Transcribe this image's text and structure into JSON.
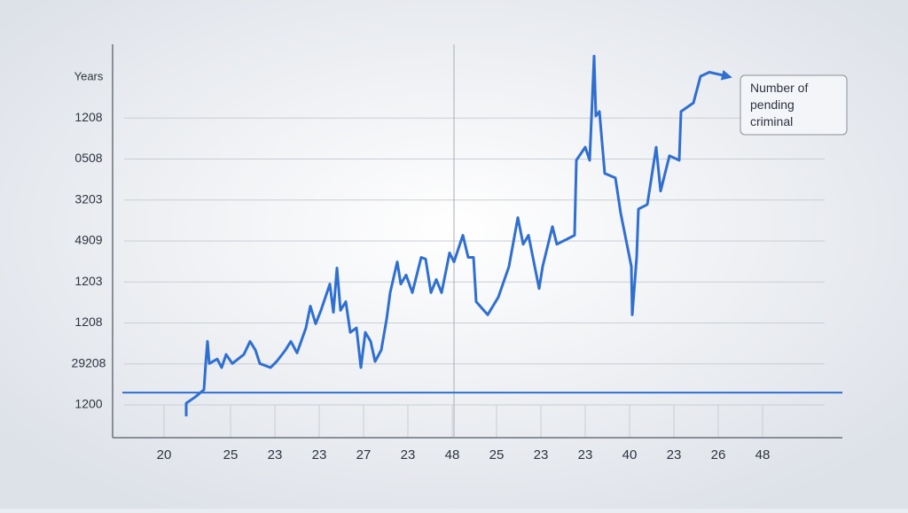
{
  "chart_data": {
    "type": "line",
    "y_label": "Years",
    "series": [
      {
        "name": "Number of pending criminal Charges",
        "color": "#2f6fd0",
        "x": [
          0.5,
          0.5,
          0.7,
          0.9,
          0.94,
          0.98,
          1.02,
          1.2,
          1.3,
          1.4,
          1.54,
          1.8,
          1.94,
          2.06,
          2.16,
          2.4,
          2.54,
          2.74,
          2.86,
          3.0,
          3.2,
          3.3,
          3.42,
          3.54,
          3.74,
          3.82,
          3.9,
          3.98,
          4.1,
          4.2,
          4.34,
          4.44,
          4.54,
          4.66,
          4.76,
          4.9,
          5.02,
          5.1,
          5.26,
          5.34,
          5.46,
          5.6,
          5.8,
          5.9,
          6.02,
          6.14,
          6.26,
          6.44,
          6.54,
          6.74,
          6.86,
          6.98,
          7.04,
          7.3,
          7.54,
          7.78,
          7.98,
          8.1,
          8.22,
          8.46,
          8.54,
          8.76,
          8.86,
          9.26,
          9.3,
          9.5,
          9.6,
          9.66,
          9.7,
          9.74,
          9.82,
          9.94,
          10.18,
          10.3,
          10.54,
          10.56,
          10.66,
          10.7,
          10.9,
          11.1,
          11.2,
          11.4,
          11.62,
          11.66,
          11.94,
          12.1,
          12.3,
          12.7
        ],
        "values": [
          -0.28,
          0.04,
          0.19,
          0.37,
          1.01,
          1.55,
          1.01,
          1.12,
          0.91,
          1.23,
          1.01,
          1.23,
          1.55,
          1.34,
          1.01,
          0.91,
          1.06,
          1.34,
          1.55,
          1.27,
          1.88,
          2.41,
          1.98,
          2.31,
          2.95,
          2.26,
          3.34,
          2.31,
          2.52,
          1.77,
          1.88,
          0.91,
          1.77,
          1.55,
          1.06,
          1.34,
          2.09,
          2.74,
          3.49,
          2.95,
          3.17,
          2.74,
          3.6,
          3.56,
          2.74,
          3.06,
          2.74,
          3.71,
          3.49,
          4.14,
          3.6,
          3.6,
          2.52,
          2.2,
          2.63,
          3.38,
          4.57,
          3.92,
          4.14,
          2.84,
          3.38,
          4.35,
          3.92,
          4.14,
          5.97,
          6.29,
          5.97,
          7.48,
          8.51,
          7.05,
          7.16,
          5.65,
          5.54,
          4.68,
          3.38,
          2.2,
          3.6,
          4.78,
          4.89,
          6.29,
          5.22,
          6.08,
          5.97,
          7.16,
          7.37,
          8.02,
          8.12,
          8.02
        ]
      }
    ],
    "hline": 0.3,
    "vline": 6.54,
    "xlim": [
      -1.16,
      15.3
    ],
    "ylim": [
      -0.8,
      8.8
    ],
    "yticks": [
      {
        "value": 0,
        "label": "1200"
      },
      {
        "value": 1,
        "label": "29208"
      },
      {
        "value": 2,
        "label": "1208"
      },
      {
        "value": 3,
        "label": "1203"
      },
      {
        "value": 4,
        "label": "4909"
      },
      {
        "value": 5,
        "label": "3203"
      },
      {
        "value": 6,
        "label": "0508"
      },
      {
        "value": 7,
        "label": "1208"
      }
    ],
    "xticks": [
      {
        "value": 0,
        "label": "20"
      },
      {
        "value": 1.5,
        "label": "25"
      },
      {
        "value": 2.5,
        "label": "23"
      },
      {
        "value": 3.5,
        "label": "23"
      },
      {
        "value": 4.5,
        "label": "27"
      },
      {
        "value": 5.5,
        "label": "23"
      },
      {
        "value": 6.5,
        "label": "48"
      },
      {
        "value": 7.5,
        "label": "25"
      },
      {
        "value": 8.5,
        "label": "23"
      },
      {
        "value": 9.5,
        "label": "23"
      },
      {
        "value": 10.5,
        "label": "40"
      },
      {
        "value": 11.5,
        "label": "23"
      },
      {
        "value": 12.5,
        "label": "26"
      },
      {
        "value": 13.5,
        "label": "48"
      }
    ],
    "grid": true
  }
}
